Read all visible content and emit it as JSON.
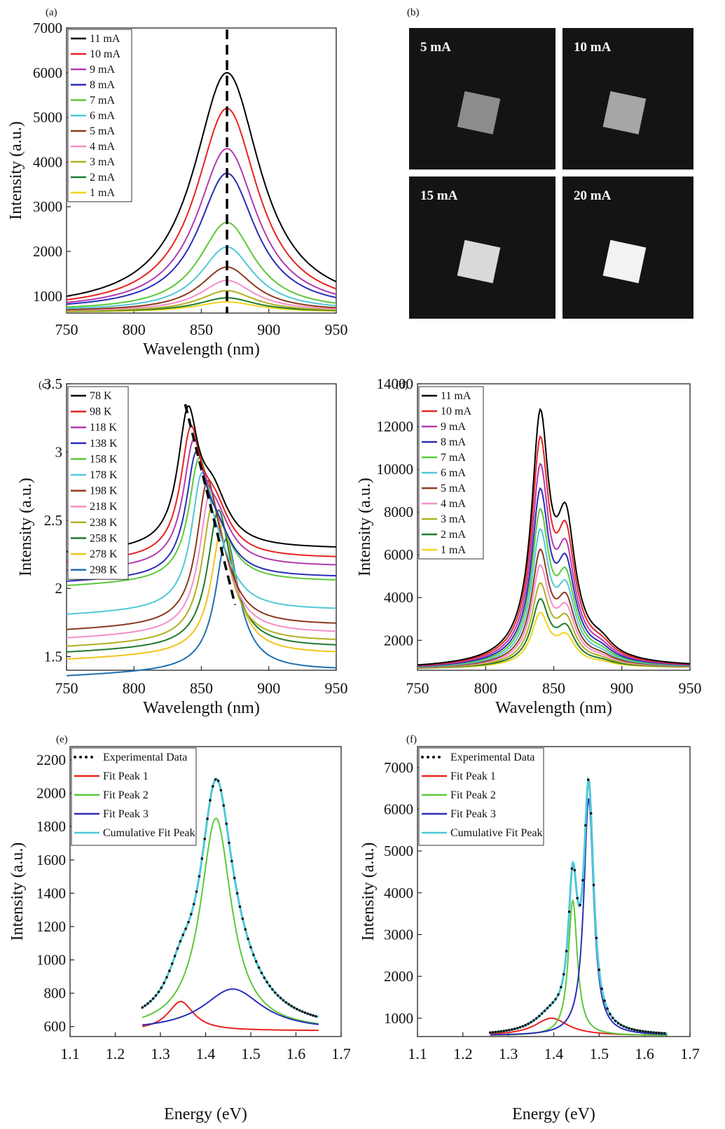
{
  "chart_data": [
    {
      "panel": "(a)",
      "type": "line",
      "xlabel": "Wavelength (nm)",
      "ylabel": "Intensity (a.u.)",
      "xlim": [
        750,
        950
      ],
      "ylim": [
        620,
        7000
      ],
      "xticks": [
        750,
        800,
        850,
        900,
        950
      ],
      "yticks": [
        1000,
        2000,
        3000,
        4000,
        5000,
        6000,
        7000
      ],
      "ytick_labels": [
        "1000",
        "2000",
        "3000",
        "4000",
        "5000",
        "6000",
        "7000"
      ],
      "legend_position": "top-left",
      "peak_marker_x": 869,
      "series": [
        {
          "name": "11 mA",
          "color": "#000000",
          "peak_x": 869,
          "peak": 6000,
          "base": 680,
          "width": 30
        },
        {
          "name": "10 mA",
          "color": "#e8231f",
          "peak_x": 869,
          "peak": 5200,
          "base": 680,
          "width": 28
        },
        {
          "name": "9 mA",
          "color": "#b23ab0",
          "peak_x": 869,
          "peak": 4300,
          "base": 680,
          "width": 27
        },
        {
          "name": "8 mA",
          "color": "#2b2db8",
          "peak_x": 869,
          "peak": 3750,
          "base": 680,
          "width": 26
        },
        {
          "name": "7 mA",
          "color": "#5cc83a",
          "peak_x": 869,
          "peak": 2650,
          "base": 670,
          "width": 25
        },
        {
          "name": "6 mA",
          "color": "#4fc8d8",
          "peak_x": 869,
          "peak": 2100,
          "base": 670,
          "width": 24
        },
        {
          "name": "5 mA",
          "color": "#8b3a1e",
          "peak_x": 869,
          "peak": 1650,
          "base": 660,
          "width": 24
        },
        {
          "name": "4 mA",
          "color": "#f28fc8",
          "peak_x": 869,
          "peak": 1350,
          "base": 660,
          "width": 24
        },
        {
          "name": "3 mA",
          "color": "#b0b020",
          "peak_x": 869,
          "peak": 1120,
          "base": 650,
          "width": 25
        },
        {
          "name": "2 mA",
          "color": "#1e7a2e",
          "peak_x": 869,
          "peak": 960,
          "base": 650,
          "width": 26
        },
        {
          "name": "1 mA",
          "color": "#f2d41a",
          "peak_x": 869,
          "peak": 870,
          "base": 640,
          "width": 28
        }
      ]
    },
    {
      "panel": "(c)",
      "type": "line",
      "xlabel": "Wavelength (nm)",
      "ylabel": "Intensity (a.u.)",
      "xlim": [
        750,
        950
      ],
      "ylim": [
        1.4,
        3.5
      ],
      "xticks": [
        750,
        800,
        850,
        900,
        950
      ],
      "yticks": [
        1.5,
        2,
        2.5,
        3,
        3.5
      ],
      "ytick_labels": [
        "1.5",
        "2",
        "2.5",
        "3",
        "3.5"
      ],
      "legend_position": "top-left",
      "trend_line": {
        "x": [
          838,
          875
        ],
        "y": [
          3.35,
          1.88
        ]
      },
      "series": [
        {
          "name": "78 K",
          "color": "#000000",
          "base": 2.29,
          "p1x": 840,
          "p1": 3.2,
          "p2x": 858,
          "p2": 2.95
        },
        {
          "name": "98 K",
          "color": "#e8231f",
          "base": 2.22,
          "p1x": 842,
          "p1": 3.05,
          "p2x": 859,
          "p2": 2.85
        },
        {
          "name": "118 K",
          "color": "#b23ab0",
          "base": 2.16,
          "p1x": 844,
          "p1": 2.95,
          "p2x": 860,
          "p2": 2.75
        },
        {
          "name": "138 K",
          "color": "#2b2db8",
          "base": 2.08,
          "p1x": 846,
          "p1": 2.87,
          "p2x": 861,
          "p2": 2.6
        },
        {
          "name": "158 K",
          "color": "#5cc83a",
          "base": 2.05,
          "p1x": 848,
          "p1": 2.82,
          "p2x": 862,
          "p2": 2.55
        },
        {
          "name": "178 K",
          "color": "#4fc8d8",
          "base": 1.84,
          "p1x": 850,
          "p1": 2.68,
          "p2x": 863,
          "p2": 2.4
        },
        {
          "name": "198 K",
          "color": "#8b3a1e",
          "base": 1.73,
          "p1x": 854,
          "p1": 2.58,
          "p2x": 864,
          "p2": 2.3
        },
        {
          "name": "218 K",
          "color": "#f28fc8",
          "base": 1.67,
          "p1x": 856,
          "p1": 2.48,
          "p2x": 865,
          "p2": 2.25
        },
        {
          "name": "238 K",
          "color": "#b0b020",
          "base": 1.61,
          "p1x": 858,
          "p1": 2.38,
          "p2x": 866,
          "p2": 2.2
        },
        {
          "name": "258 K",
          "color": "#1e7a2e",
          "base": 1.57,
          "p1x": 862,
          "p1": 2.3,
          "p2x": 868,
          "p2": 2.15
        },
        {
          "name": "278 K",
          "color": "#f2c31a",
          "base": 1.52,
          "p1x": 865,
          "p1": 2.2,
          "p2x": 870,
          "p2": 2.05
        },
        {
          "name": "298 K",
          "color": "#1f6fb0",
          "base": 1.4,
          "p1x": 868,
          "p1": 2.08,
          "p2x": 872,
          "p2": 1.95
        }
      ]
    },
    {
      "panel": "(d)",
      "type": "line",
      "xlabel": "Wavelength (nm)",
      "ylabel": "Intensity (a.u.)",
      "xlim": [
        750,
        950
      ],
      "ylim": [
        600,
        14000
      ],
      "xticks": [
        750,
        800,
        850,
        900,
        950
      ],
      "yticks": [
        2000,
        4000,
        6000,
        8000,
        10000,
        12000,
        14000
      ],
      "ytick_labels": [
        "2000",
        "4000",
        "6000",
        "8000",
        "10000",
        "12000",
        "14000"
      ],
      "legend_position": "top-left",
      "series": [
        {
          "name": "11 mA",
          "color": "#000000",
          "p1": 12200,
          "p2": 8800
        },
        {
          "name": "10 mA",
          "color": "#e8231f",
          "p1": 11000,
          "p2": 7900
        },
        {
          "name": "9 mA",
          "color": "#b23ab0",
          "p1": 9800,
          "p2": 7000
        },
        {
          "name": "8 mA",
          "color": "#2b2db8",
          "p1": 8700,
          "p2": 6300
        },
        {
          "name": "7 mA",
          "color": "#5cc83a",
          "p1": 7800,
          "p2": 5600
        },
        {
          "name": "6 mA",
          "color": "#4fc8d8",
          "p1": 6900,
          "p2": 5000
        },
        {
          "name": "5 mA",
          "color": "#8b3a1e",
          "p1": 6000,
          "p2": 4400
        },
        {
          "name": "4 mA",
          "color": "#f28fc8",
          "p1": 5300,
          "p2": 3900
        },
        {
          "name": "3 mA",
          "color": "#b0b020",
          "p1": 4500,
          "p2": 3400
        },
        {
          "name": "2 mA",
          "color": "#1e7a2e",
          "p1": 3800,
          "p2": 2900
        },
        {
          "name": "1 mA",
          "color": "#f2d41a",
          "p1": 3200,
          "p2": 2450
        }
      ]
    },
    {
      "panel": "(e)",
      "type": "line",
      "xlabel": "Energy (eV)",
      "ylabel": "Intensity (a.u.)",
      "xlim": [
        1.1,
        1.7
      ],
      "ylim": [
        540,
        2280
      ],
      "xticks": [
        1.1,
        1.2,
        1.3,
        1.4,
        1.5,
        1.6,
        1.7
      ],
      "yticks": [
        600,
        800,
        1000,
        1200,
        1400,
        1600,
        1800,
        2000,
        2200
      ],
      "ytick_labels": [
        "600",
        "800",
        "1000",
        "1200",
        "1400",
        "1600",
        "1800",
        "2000",
        "2200"
      ],
      "legend_position": "top-left",
      "data_range": [
        1.26,
        1.65
      ],
      "base": 575,
      "peaks": [
        {
          "name": "Fit Peak 1",
          "color": "#e8231f",
          "center": 1.345,
          "amp": 175,
          "width": 0.035
        },
        {
          "name": "Fit Peak 2",
          "color": "#5cc83a",
          "center": 1.423,
          "amp": 1275,
          "width": 0.042
        },
        {
          "name": "Fit Peak 3",
          "color": "#2b2db8",
          "center": 1.46,
          "amp": 250,
          "width": 0.08
        }
      ],
      "experimental_label": "Experimental Data",
      "cumulative_label": "Cumulative Fit Peak",
      "cumulative_color": "#4fc8d8"
    },
    {
      "panel": "(f)",
      "type": "line",
      "xlabel": "Energy (eV)",
      "ylabel": "Intensity (a.u.)",
      "xlim": [
        1.1,
        1.7
      ],
      "ylim": [
        560,
        7500
      ],
      "xticks": [
        1.1,
        1.2,
        1.3,
        1.4,
        1.5,
        1.6,
        1.7
      ],
      "yticks": [
        1000,
        2000,
        3000,
        4000,
        5000,
        6000,
        7000
      ],
      "ytick_labels": [
        "1000",
        "2000",
        "3000",
        "4000",
        "5000",
        "6000",
        "7000"
      ],
      "legend_position": "top-left",
      "data_range": [
        1.26,
        1.65
      ],
      "base": 580,
      "peaks": [
        {
          "name": "Fit Peak 1",
          "color": "#e8231f",
          "center": 1.395,
          "amp": 420,
          "width": 0.045
        },
        {
          "name": "Fit Peak 2",
          "color": "#5cc83a",
          "center": 1.442,
          "amp": 3250,
          "width": 0.012
        },
        {
          "name": "Fit Peak 3",
          "color": "#2b2db8",
          "center": 1.477,
          "amp": 5700,
          "width": 0.013
        }
      ],
      "experimental_label": "Experimental Data",
      "cumulative_label": "Cumulative Fit Peak",
      "cumulative_color": "#4fc8d8"
    }
  ],
  "panel_b": {
    "label": "(b)",
    "quadrants": [
      "5 mA",
      "10 mA",
      "15 mA",
      "20 mA"
    ],
    "brightness": [
      0.55,
      0.65,
      0.85,
      0.95
    ]
  }
}
